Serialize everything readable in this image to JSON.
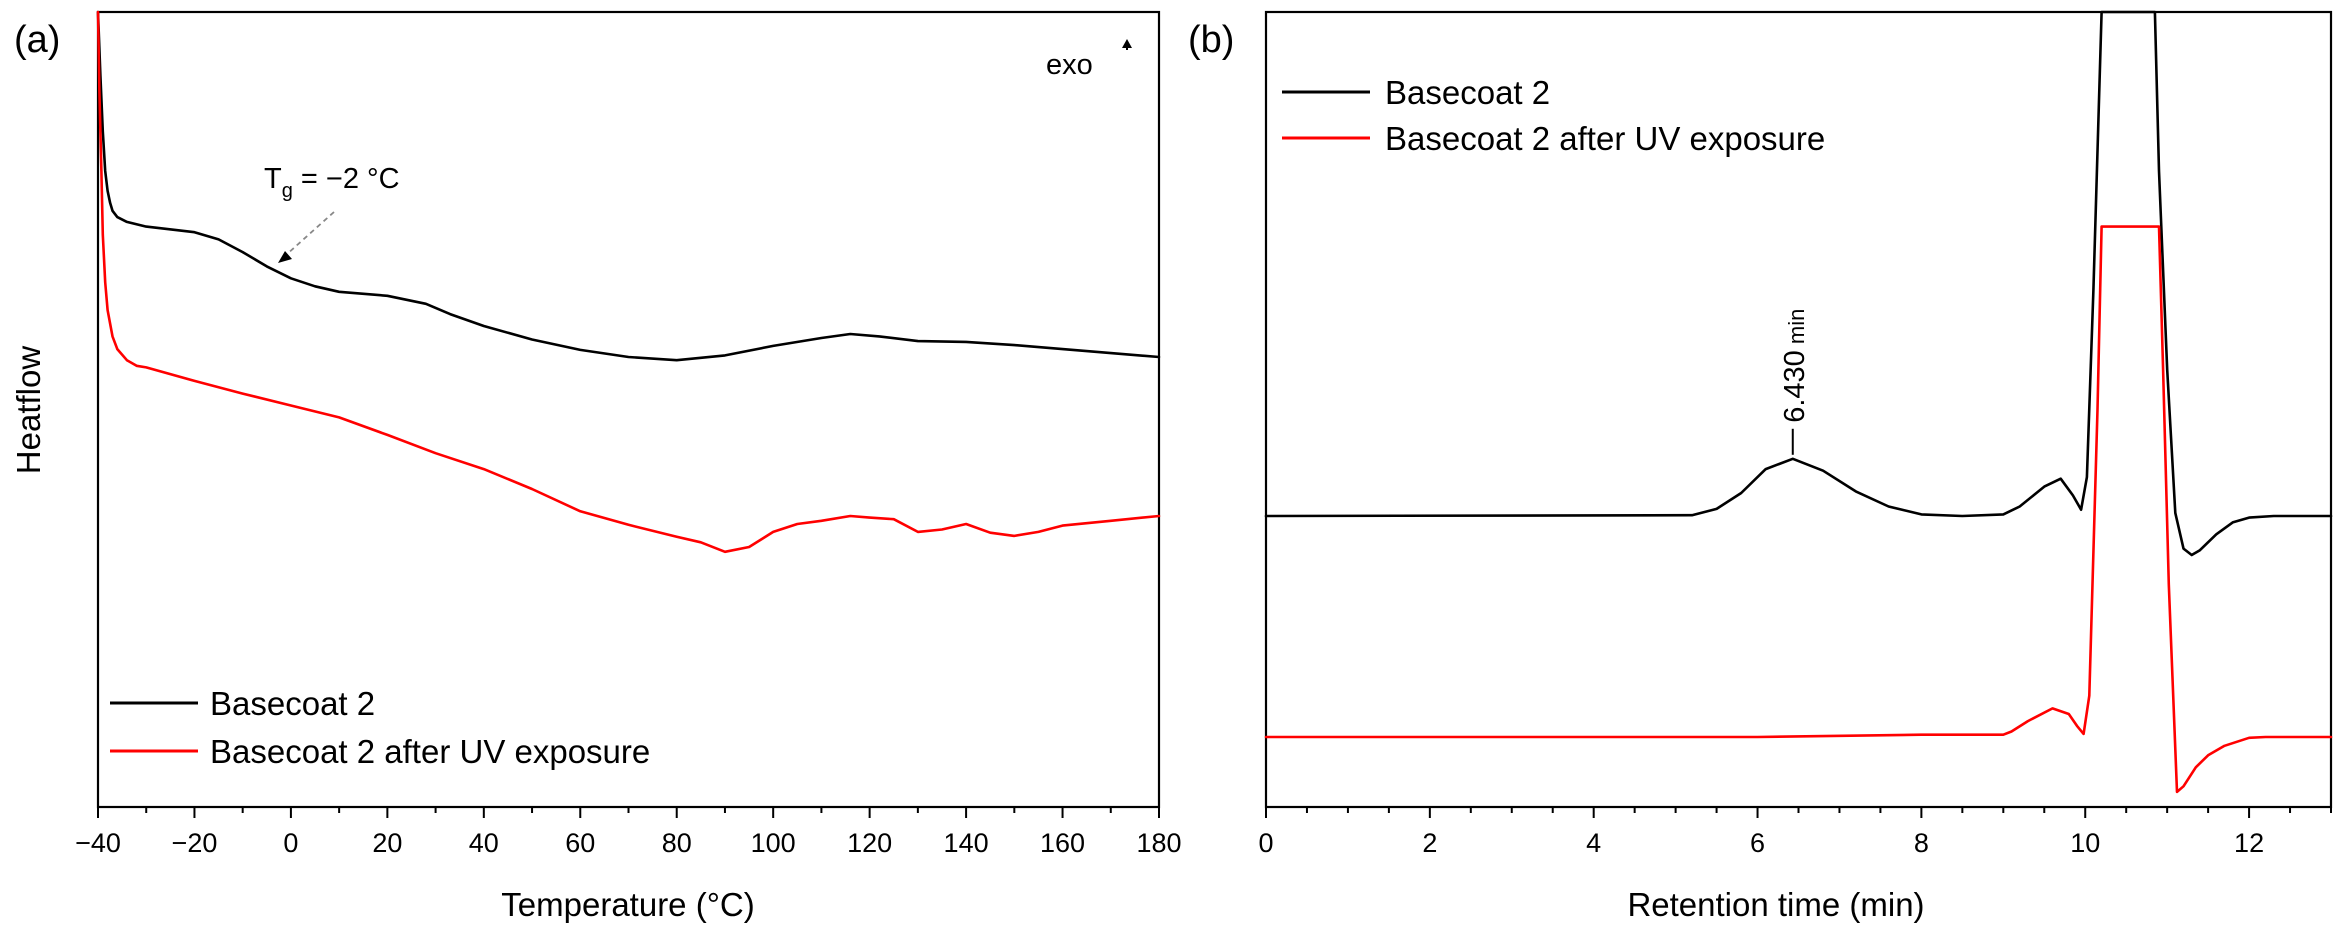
{
  "chart_data": [
    {
      "panel_label": "(a)",
      "type": "line",
      "xlabel": "Temperature (°C)",
      "ylabel": "Heatflow",
      "xlim": [
        -40,
        180
      ],
      "ylim": [
        0,
        100
      ],
      "xticks": [
        -40,
        -20,
        0,
        20,
        40,
        60,
        80,
        100,
        120,
        140,
        160,
        180
      ],
      "xtick_labels": [
        "−40",
        "−20",
        "0",
        "20",
        "40",
        "60",
        "80",
        "100",
        "120",
        "140",
        "160",
        "180"
      ],
      "xminor_step": 10,
      "y_ticks_shown": false,
      "direction_label": "exo",
      "annotation_tg": {
        "symbol": "T",
        "subscript": "g",
        "value_text": " = −2 °C",
        "points_to_x": -2,
        "style": "dashed arrow"
      },
      "legend_placement": "bottom-left",
      "series": [
        {
          "name": "Basecoat 2",
          "color": "#000000",
          "x": [
            -40,
            -39.5,
            -39,
            -38.5,
            -38,
            -37.5,
            -37,
            -36,
            -34,
            -30,
            -20,
            -15,
            -10,
            -5,
            0,
            5,
            10,
            20,
            28,
            33,
            40,
            50,
            60,
            70,
            80,
            90,
            100,
            110,
            116,
            122,
            130,
            140,
            150,
            160,
            170,
            180
          ],
          "y": [
            100,
            92,
            85,
            80,
            77.5,
            76,
            75,
            74.2,
            73.6,
            73,
            72.3,
            71.4,
            69.8,
            68,
            66.5,
            65.5,
            64.8,
            64.3,
            63.3,
            62,
            60.5,
            58.8,
            57.5,
            56.6,
            56.2,
            56.8,
            58,
            59,
            59.5,
            59.2,
            58.6,
            58.5,
            58.1,
            57.6,
            57.1,
            56.6
          ]
        },
        {
          "name": "Basecoat 2 after UV exposure",
          "color": "#ff0000",
          "x": [
            -40,
            -39.7,
            -39.3,
            -39,
            -38.5,
            -38,
            -37,
            -36,
            -34,
            -32,
            -30,
            -20,
            -10,
            0,
            10,
            20,
            30,
            40,
            50,
            60,
            70,
            80,
            85,
            90,
            95,
            100,
            105,
            110,
            116,
            120,
            125,
            130,
            135,
            140,
            145,
            150,
            155,
            160,
            170,
            180
          ],
          "y": [
            100,
            90,
            80,
            72,
            66,
            62.5,
            59.2,
            57.6,
            56.2,
            55.5,
            55.3,
            53.6,
            52,
            50.5,
            49,
            46.8,
            44.5,
            42.5,
            40,
            37.2,
            35.5,
            34,
            33.3,
            32.1,
            32.7,
            34.6,
            35.6,
            36,
            36.6,
            36.4,
            36.2,
            34.6,
            34.9,
            35.6,
            34.5,
            34.1,
            34.6,
            35.4,
            36,
            36.6
          ]
        }
      ]
    },
    {
      "panel_label": "(b)",
      "type": "line",
      "xlabel": "Retention time (min)",
      "xlim": [
        0,
        13
      ],
      "ylim": [
        0,
        100
      ],
      "xticks": [
        0,
        2,
        4,
        6,
        8,
        10,
        12
      ],
      "xtick_labels": [
        "0",
        "2",
        "4",
        "6",
        "8",
        "10",
        "12"
      ],
      "xminor_step": 0.5,
      "y_ticks_shown": false,
      "peak_annotation": {
        "label": "6.430",
        "unit": " min",
        "x": 6.43,
        "y": 43.8
      },
      "legend_placement": "top-left",
      "series": [
        {
          "name": "Basecoat 2",
          "color": "#000000",
          "x": [
            0,
            5.2,
            5.5,
            5.8,
            6.1,
            6.43,
            6.8,
            7.2,
            7.6,
            8,
            8.5,
            9,
            9.2,
            9.5,
            9.7,
            9.85,
            9.95,
            10.02,
            10.1,
            10.2,
            10.85,
            10.9,
            11,
            11.1,
            11.2,
            11.3,
            11.4,
            11.6,
            11.8,
            12,
            12.3,
            13
          ],
          "y": [
            36.6,
            36.7,
            37.5,
            39.5,
            42.5,
            43.8,
            42.3,
            39.7,
            37.8,
            36.8,
            36.6,
            36.8,
            37.8,
            40.3,
            41.3,
            39.2,
            37.4,
            41.5,
            65,
            100,
            100,
            80,
            55,
            37,
            32.5,
            31.7,
            32.3,
            34.3,
            35.8,
            36.4,
            36.6,
            36.6
          ]
        },
        {
          "name": "Basecoat 2 after UV exposure",
          "color": "#ff0000",
          "x": [
            0,
            6,
            8,
            9,
            9.1,
            9.3,
            9.6,
            9.8,
            9.9,
            9.98,
            10.05,
            10.15,
            10.2,
            10.9,
            10.95,
            11.02,
            11.12,
            11.2,
            11.35,
            11.5,
            11.7,
            12,
            12.2,
            13
          ],
          "y": [
            8.8,
            8.8,
            9.1,
            9.1,
            9.5,
            10.8,
            12.4,
            11.7,
            10.2,
            9.2,
            14,
            50,
            73,
            73,
            55,
            28,
            1.9,
            2.6,
            5,
            6.5,
            7.7,
            8.7,
            8.8,
            8.8
          ]
        }
      ]
    }
  ]
}
